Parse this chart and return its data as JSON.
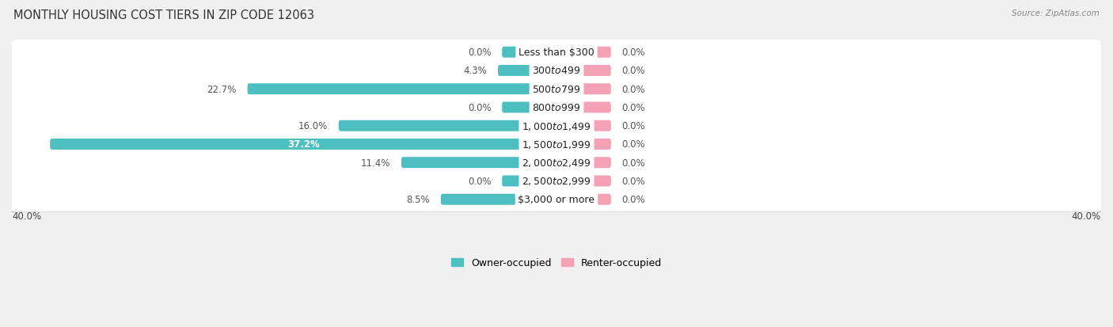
{
  "title": "MONTHLY HOUSING COST TIERS IN ZIP CODE 12063",
  "source": "Source: ZipAtlas.com",
  "categories": [
    "Less than $300",
    "$300 to $499",
    "$500 to $799",
    "$800 to $999",
    "$1,000 to $1,499",
    "$1,500 to $1,999",
    "$2,000 to $2,499",
    "$2,500 to $2,999",
    "$3,000 or more"
  ],
  "owner_values": [
    0.0,
    4.3,
    22.7,
    0.0,
    16.0,
    37.2,
    11.4,
    0.0,
    8.5
  ],
  "renter_values": [
    0.0,
    0.0,
    0.0,
    0.0,
    0.0,
    0.0,
    0.0,
    0.0,
    0.0
  ],
  "owner_color": "#4DBFBF",
  "renter_color": "#F4A0B5",
  "axis_limit": 40.0,
  "bg_color": "#f0f0f0",
  "row_bg_color": "#ffffff",
  "title_fontsize": 10.5,
  "label_fontsize": 8.5,
  "category_fontsize": 9.0,
  "source_fontsize": 7.5,
  "axis_label_fontsize": 8.5,
  "min_owner_display": 4.0,
  "min_renter_display": 4.0
}
